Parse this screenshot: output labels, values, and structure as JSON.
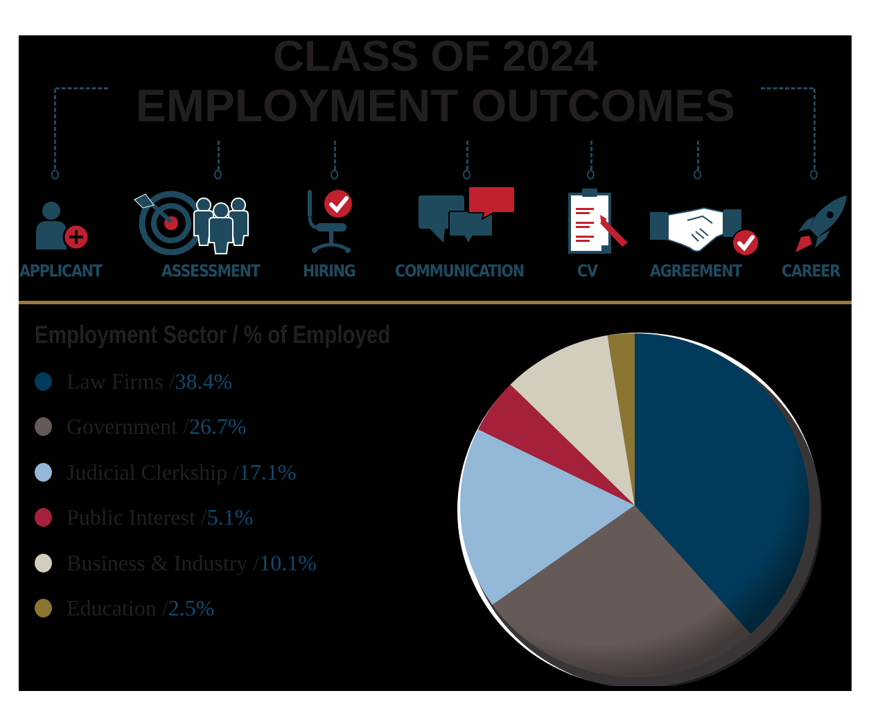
{
  "header": {
    "title_line1": "CLASS OF 2024",
    "title_line2": "EMPLOYMENT OUTCOMES"
  },
  "process_steps": [
    {
      "label": "APPLICANT",
      "icon": "user-plus-icon"
    },
    {
      "label": "ASSESSMENT",
      "icon": "target-team-icon"
    },
    {
      "label": "HIRING",
      "icon": "chair-check-icon"
    },
    {
      "label": "COMMUNICATION",
      "icon": "chat-bubbles-icon"
    },
    {
      "label": "CV",
      "icon": "clipboard-pencil-icon"
    },
    {
      "label": "AGREEMENT",
      "icon": "handshake-check-icon"
    },
    {
      "label": "CAREER",
      "icon": "rocket-icon"
    }
  ],
  "legend": {
    "title": "Employment Sector / % of Employed",
    "items": [
      {
        "label": "Law Firms / ",
        "value": "38.4%",
        "color": "#013a5a"
      },
      {
        "label": "Government / ",
        "value": "26.7%",
        "color": "#655a57"
      },
      {
        "label": "Judicial Clerkship / ",
        "value": "17.1%",
        "color": "#93b8d8"
      },
      {
        "label": "Public Interest / ",
        "value": "5.1%",
        "color": "#a5203a"
      },
      {
        "label": "Business & Industry / ",
        "value": "10.1%",
        "color": "#d3cdbd"
      },
      {
        "label": "Education / ",
        "value": "2.5%",
        "color": "#8a7533"
      }
    ]
  },
  "colors": {
    "background": "#000000",
    "accent_blue": "#1f4a5e",
    "accent_red": "#c1202f",
    "divider_gold": "#9b7a3a",
    "title_text": "#231f20",
    "value_text": "#0e4a6e"
  },
  "chart_data": {
    "type": "pie",
    "title": "Employment Sector / % of Employed",
    "categories": [
      "Law Firms",
      "Government",
      "Judicial Clerkship",
      "Public Interest",
      "Business & Industry",
      "Education"
    ],
    "values": [
      38.4,
      26.7,
      17.1,
      5.1,
      10.1,
      2.5
    ],
    "colors": [
      "#013a5a",
      "#655a57",
      "#93b8d8",
      "#a5203a",
      "#d3cdbd",
      "#8a7533"
    ],
    "start_angle": "12 o'clock, clockwise",
    "legend_position": "left"
  }
}
